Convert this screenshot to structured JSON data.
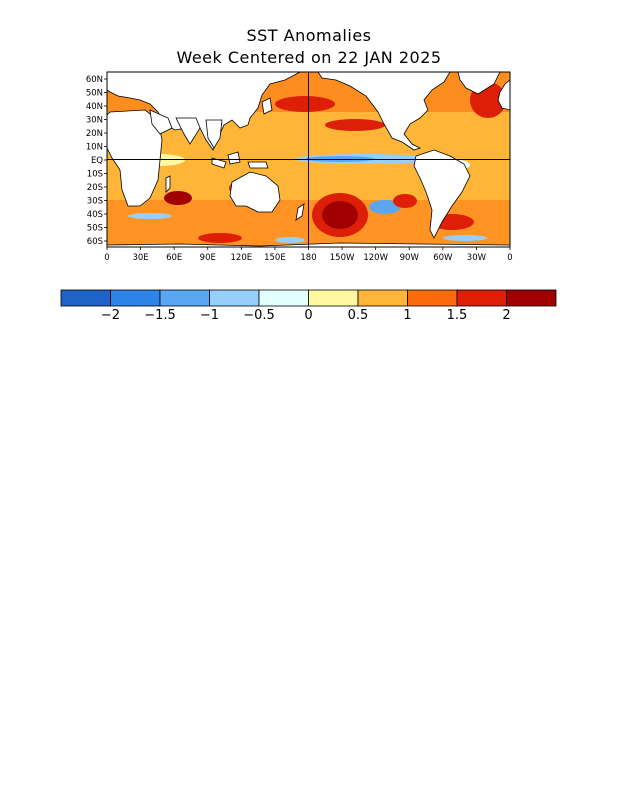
{
  "title": "SST Anomalies",
  "subtitle": "Week Centered on 22 JAN 2025",
  "lat_labels": [
    "60N",
    "50N",
    "40N",
    "30N",
    "20N",
    "10N",
    "EQ",
    "10S",
    "20S",
    "30S",
    "40S",
    "50S",
    "60S"
  ],
  "lon_labels": [
    "0",
    "30E",
    "60E",
    "90E",
    "120E",
    "150E",
    "180",
    "150W",
    "120W",
    "90W",
    "60W",
    "30W",
    "0"
  ],
  "colorbar": {
    "colors": [
      "#1f63c9",
      "#2e84e6",
      "#5aa6f0",
      "#96d0fa",
      "#e2ffff",
      "#fff8a3",
      "#ffb538",
      "#fe6b0d",
      "#dd1f07",
      "#a00000"
    ],
    "labels": [
      "−2",
      "−1.5",
      "−1",
      "−0.5",
      "0",
      "0.5",
      "1",
      "1.5",
      "2"
    ]
  },
  "colors": {
    "land": "#ffffff",
    "coastline": "#000000"
  }
}
